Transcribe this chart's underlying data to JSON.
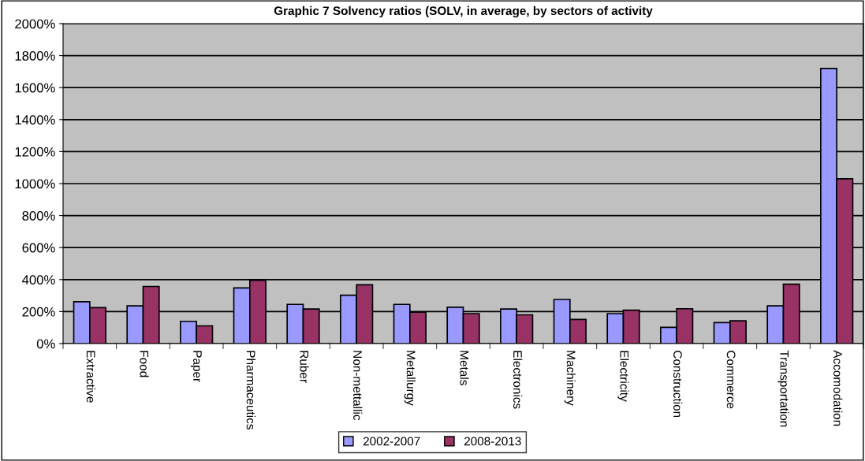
{
  "chart_data": {
    "type": "bar",
    "title": "Graphic 7 Solvency ratios (SOLV, in average, by sectors of activity",
    "categories": [
      "Extractive",
      "Food",
      "Paper",
      "Pharmaceutics",
      "Ruber",
      "Non-mettallic",
      "Metallurgy",
      "Metals",
      "Electronics",
      "Machinery",
      "Electricity",
      "Construction",
      "Commerce",
      "Transportation",
      "Accomodation"
    ],
    "series": [
      {
        "name": "2002-2007",
        "color": "#9999ff",
        "values": [
          262,
          236,
          139,
          348,
          245,
          302,
          245,
          227,
          216,
          276,
          187,
          102,
          131,
          236,
          1720
        ]
      },
      {
        "name": "2008-2013",
        "color": "#993366",
        "values": [
          225,
          357,
          111,
          396,
          216,
          368,
          196,
          187,
          180,
          151,
          209,
          218,
          142,
          371,
          1030
        ]
      }
    ],
    "ylim": [
      0,
      2000
    ],
    "yticks": [
      {
        "value": 0,
        "label": "0%"
      },
      {
        "value": 200,
        "label": "200%"
      },
      {
        "value": 400,
        "label": "400%"
      },
      {
        "value": 600,
        "label": "600%"
      },
      {
        "value": 800,
        "label": "800%"
      },
      {
        "value": 1000,
        "label": "1000%"
      },
      {
        "value": 1200,
        "label": "1200%"
      },
      {
        "value": 1400,
        "label": "1400%"
      },
      {
        "value": 1600,
        "label": "1600%"
      },
      {
        "value": 1800,
        "label": "1800%"
      },
      {
        "value": 2000,
        "label": "2000%"
      }
    ],
    "grid": "y",
    "legend": "bottom"
  }
}
